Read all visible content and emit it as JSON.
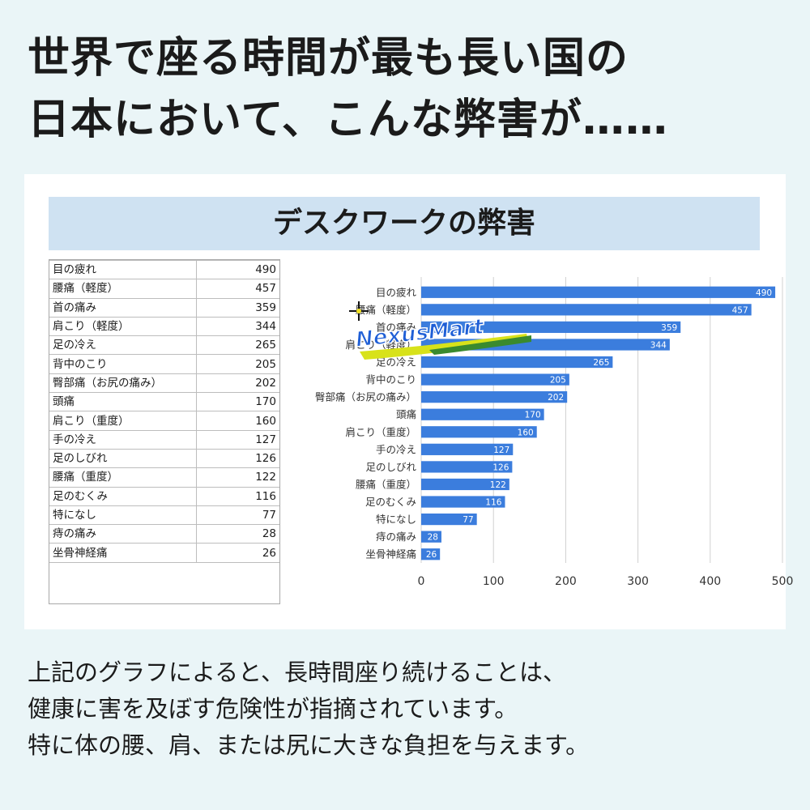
{
  "headline": {
    "line1": "世界で座る時間が最も長い国の",
    "line2": "日本において、こんな弊害が……"
  },
  "panel_title": "デスクワークの弊害",
  "watermark": "NexusMart",
  "table": {
    "rows": [
      {
        "name": "目の疲れ",
        "value": "490"
      },
      {
        "name": "腰痛（軽度）",
        "value": "457"
      },
      {
        "name": "首の痛み",
        "value": "359"
      },
      {
        "name": "肩こり（軽度）",
        "value": "344"
      },
      {
        "name": "足の冷え",
        "value": "265"
      },
      {
        "name": "背中のこり",
        "value": "205"
      },
      {
        "name": "臀部痛（お尻の痛み）",
        "value": "202"
      },
      {
        "name": "頭痛",
        "value": "170"
      },
      {
        "name": "肩こり（重度）",
        "value": "160"
      },
      {
        "name": "手の冷え",
        "value": "127"
      },
      {
        "name": "足のしびれ",
        "value": "126"
      },
      {
        "name": "腰痛（重度）",
        "value": "122"
      },
      {
        "name": "足のむくみ",
        "value": "116"
      },
      {
        "name": "特になし",
        "value": "77"
      },
      {
        "name": "痔の痛み",
        "value": "28"
      },
      {
        "name": "坐骨神経痛",
        "value": "26"
      }
    ]
  },
  "chart_data": {
    "type": "bar",
    "orientation": "horizontal",
    "categories": [
      "目の疲れ",
      "腰痛（軽度）",
      "首の痛み",
      "肩こり（軽度）",
      "足の冷え",
      "背中のこり",
      "臀部痛（お尻の痛み）",
      "頭痛",
      "肩こり（重度）",
      "手の冷え",
      "足のしびれ",
      "腰痛（重度）",
      "足のむくみ",
      "特になし",
      "痔の痛み",
      "坐骨神経痛"
    ],
    "values": [
      490,
      457,
      359,
      344,
      265,
      205,
      202,
      170,
      160,
      127,
      126,
      122,
      116,
      77,
      28,
      26
    ],
    "title": "",
    "xlabel": "",
    "ylabel": "",
    "xlim": [
      0,
      500
    ],
    "xticks": [
      0,
      100,
      200,
      300,
      400,
      500
    ],
    "grid": true,
    "data_labels": "inside-end",
    "bar_color": "#3b7ddd"
  },
  "footer": {
    "line1": "上記のグラフによると、長時間座り続けることは、",
    "line2": "健康に害を及ぼす危険性が指摘されています。",
    "line3": "特に体の腰、肩、または尻に大きな負担を与えます。"
  }
}
